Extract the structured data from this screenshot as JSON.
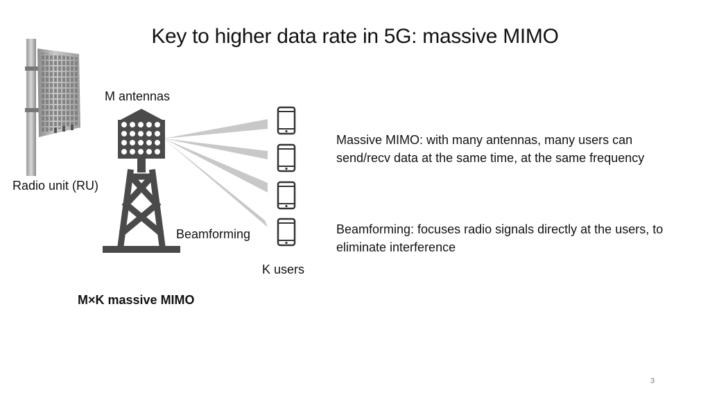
{
  "slide": {
    "title": "Key to higher data rate in 5G: massive MIMO",
    "page_number": "3"
  },
  "diagram": {
    "labels": {
      "m_antennas": "M antennas",
      "radio_unit": "Radio unit (RU)",
      "beamforming": "Beamforming",
      "k_users": "K users",
      "mxk": "M×K massive MIMO"
    },
    "descriptions": {
      "massive_mimo": "Massive MIMO: with many antennas, many users can send/recv data at the same time, at the same frequency",
      "beamforming": "Beamforming: focuses radio signals directly at the users, to eliminate interference"
    },
    "icons": [
      "radio-unit-icon",
      "tower-icon",
      "phone-icon"
    ],
    "colors": {
      "tower": "#4a4a4a",
      "beam": "#c8c8c8",
      "phone": "#333333"
    }
  }
}
